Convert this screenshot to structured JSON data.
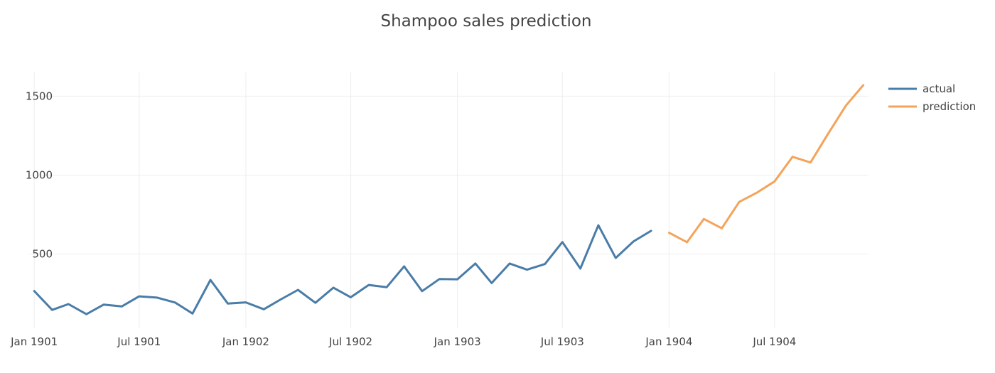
{
  "chart_data": {
    "type": "line",
    "title": "Shampoo sales prediction",
    "xlabel": "",
    "ylabel": "",
    "x_axis": {
      "type": "date",
      "range": [
        "1900-12-22",
        "1904-12-10"
      ],
      "ticks": [
        {
          "value": "1901-01-01",
          "label": "Jan 1901"
        },
        {
          "value": "1901-07-01",
          "label": "Jul 1901"
        },
        {
          "value": "1902-01-01",
          "label": "Jan 1902"
        },
        {
          "value": "1902-07-01",
          "label": "Jul 1902"
        },
        {
          "value": "1903-01-01",
          "label": "Jan 1903"
        },
        {
          "value": "1903-07-01",
          "label": "Jul 1903"
        },
        {
          "value": "1904-01-01",
          "label": "Jan 1904"
        },
        {
          "value": "1904-07-01",
          "label": "Jul 1904"
        }
      ],
      "grid": true
    },
    "y_axis": {
      "range": [
        30,
        1650
      ],
      "ticks": [
        500,
        1000,
        1500
      ],
      "grid": true
    },
    "legend": {
      "placement": "top-right"
    },
    "series": [
      {
        "name": "actual",
        "color": "#4a7ca8",
        "points": [
          {
            "x": "1901-01-01",
            "y": 266
          },
          {
            "x": "1901-02-01",
            "y": 146
          },
          {
            "x": "1901-03-01",
            "y": 183
          },
          {
            "x": "1901-04-01",
            "y": 119
          },
          {
            "x": "1901-05-01",
            "y": 180
          },
          {
            "x": "1901-06-01",
            "y": 168
          },
          {
            "x": "1901-07-01",
            "y": 232
          },
          {
            "x": "1901-08-01",
            "y": 224
          },
          {
            "x": "1901-09-01",
            "y": 193
          },
          {
            "x": "1901-10-01",
            "y": 123
          },
          {
            "x": "1901-11-01",
            "y": 336
          },
          {
            "x": "1901-12-01",
            "y": 186
          },
          {
            "x": "1902-01-01",
            "y": 194
          },
          {
            "x": "1902-02-01",
            "y": 150
          },
          {
            "x": "1902-03-01",
            "y": 210
          },
          {
            "x": "1902-04-01",
            "y": 273
          },
          {
            "x": "1902-05-01",
            "y": 191
          },
          {
            "x": "1902-06-01",
            "y": 287
          },
          {
            "x": "1902-07-01",
            "y": 226
          },
          {
            "x": "1902-08-01",
            "y": 304
          },
          {
            "x": "1902-09-01",
            "y": 290
          },
          {
            "x": "1902-10-01",
            "y": 422
          },
          {
            "x": "1902-11-01",
            "y": 265
          },
          {
            "x": "1902-12-01",
            "y": 342
          },
          {
            "x": "1903-01-01",
            "y": 340
          },
          {
            "x": "1903-02-01",
            "y": 440
          },
          {
            "x": "1903-03-01",
            "y": 316
          },
          {
            "x": "1903-04-01",
            "y": 440
          },
          {
            "x": "1903-05-01",
            "y": 401
          },
          {
            "x": "1903-06-01",
            "y": 437
          },
          {
            "x": "1903-07-01",
            "y": 576
          },
          {
            "x": "1903-08-01",
            "y": 408
          },
          {
            "x": "1903-09-01",
            "y": 682
          },
          {
            "x": "1903-10-01",
            "y": 475
          },
          {
            "x": "1903-11-01",
            "y": 581
          },
          {
            "x": "1903-12-01",
            "y": 647
          }
        ]
      },
      {
        "name": "prediction",
        "color": "#f5a35a",
        "points": [
          {
            "x": "1904-01-01",
            "y": 635
          },
          {
            "x": "1904-02-01",
            "y": 575
          },
          {
            "x": "1904-03-01",
            "y": 722
          },
          {
            "x": "1904-04-01",
            "y": 663
          },
          {
            "x": "1904-05-01",
            "y": 830
          },
          {
            "x": "1904-06-01",
            "y": 890
          },
          {
            "x": "1904-07-01",
            "y": 960
          },
          {
            "x": "1904-08-01",
            "y": 1116
          },
          {
            "x": "1904-09-01",
            "y": 1080
          },
          {
            "x": "1904-10-01",
            "y": 1260
          },
          {
            "x": "1904-11-01",
            "y": 1440
          },
          {
            "x": "1904-12-01",
            "y": 1570
          }
        ]
      }
    ]
  }
}
